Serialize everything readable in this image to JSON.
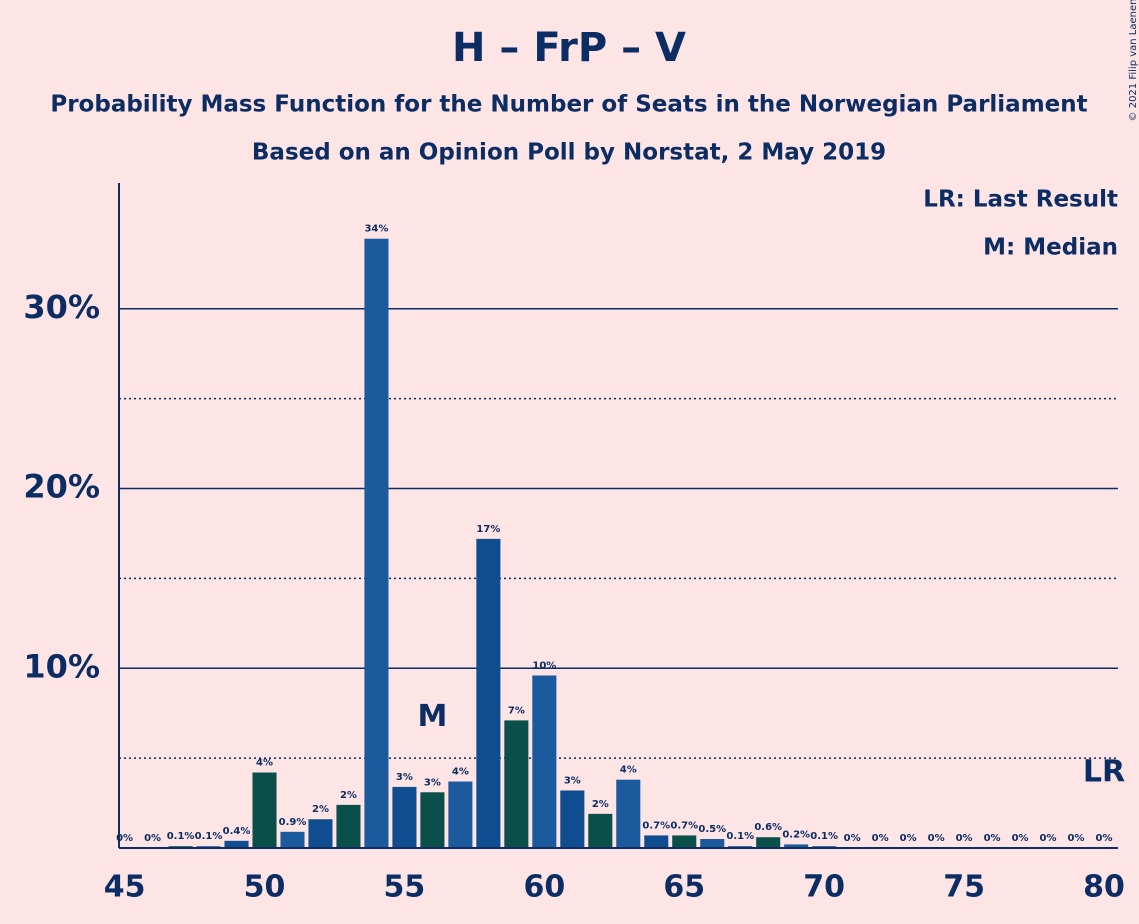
{
  "chart_data": {
    "type": "bar",
    "title": "H – FrP – V",
    "subtitle": [
      "Probability Mass Function for the Number of Seats in the Norwegian Parliament",
      "Based on an Opinion Poll by Norstat, 2 May 2019"
    ],
    "legend_texts": [
      "LR: Last Result",
      "M: Median"
    ],
    "copyright": "© 2021 Filip van Laenen",
    "x": [
      45,
      46,
      47,
      48,
      49,
      50,
      51,
      52,
      53,
      54,
      55,
      56,
      57,
      58,
      59,
      60,
      61,
      62,
      63,
      64,
      65,
      66,
      67,
      68,
      69,
      70,
      71,
      72,
      73,
      74,
      75,
      76,
      77,
      78,
      79,
      80
    ],
    "values": [
      0,
      0,
      0.1,
      0.1,
      0.4,
      4.2,
      0.9,
      1.6,
      2.4,
      33.9,
      3.4,
      3.1,
      3.7,
      17.2,
      7.1,
      9.6,
      3.2,
      1.9,
      3.8,
      0.7,
      0.7,
      0.5,
      0.1,
      0.6,
      0.2,
      0.1,
      0,
      0,
      0,
      0,
      0,
      0,
      0,
      0,
      0,
      0
    ],
    "value_labels": [
      "0%",
      "0%",
      "0.1%",
      "0.1%",
      "0.4%",
      "4%",
      "0.9%",
      "2%",
      "2%",
      "34%",
      "3%",
      "3%",
      "4%",
      "17%",
      "7%",
      "10%",
      "3%",
      "2%",
      "4%",
      "0.7%",
      "0.7%",
      "0.5%",
      "0.1%",
      "0.6%",
      "0.2%",
      "0.1%",
      "0%",
      "0%",
      "0%",
      "0%",
      "0%",
      "0%",
      "0%",
      "0%",
      "0%",
      "0%"
    ],
    "color_cycle": [
      "#1c5a9e",
      "#0f4c90",
      "#0b4f4a"
    ],
    "annotations": [
      {
        "text": "M",
        "x": 56
      },
      {
        "text": "LR",
        "x": 80
      }
    ],
    "xlim": [
      44.8,
      80.5
    ],
    "xticks": [
      45,
      50,
      55,
      60,
      65,
      70,
      75,
      80
    ],
    "ylim": [
      0,
      37
    ],
    "yticks": [
      {
        "value": 10,
        "label": "10%"
      },
      {
        "value": 20,
        "label": "20%"
      },
      {
        "value": 30,
        "label": "30%"
      }
    ],
    "minor_yticks": [
      5,
      15,
      25
    ],
    "grid": true
  }
}
